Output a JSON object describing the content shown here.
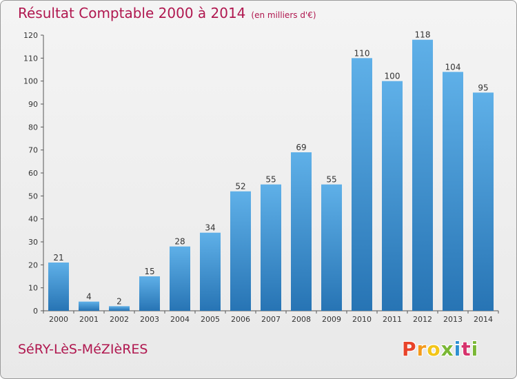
{
  "header": {
    "title": "Résultat Comptable 2000 à 2014",
    "subtitle": "(en milliers d'€)"
  },
  "footer": {
    "place": "SéRY-LèS-MéZIèRES",
    "logo": "Proxiti"
  },
  "colors": {
    "title": "#b0174f",
    "bar_top": "#5fb0e8",
    "bar_bottom": "#2774b4",
    "logo_letters": [
      "#e8432a",
      "#f39a1d",
      "#f3c519",
      "#7ab735",
      "#2e8fd1",
      "#d6336c",
      "#7ab735"
    ]
  },
  "chart_data": {
    "type": "bar",
    "title": "Résultat Comptable 2000 à 2014",
    "subtitle": "(en milliers d'€)",
    "xlabel": "",
    "ylabel": "",
    "categories": [
      "2000",
      "2001",
      "2002",
      "2003",
      "2004",
      "2005",
      "2006",
      "2007",
      "2008",
      "2009",
      "2010",
      "2011",
      "2012",
      "2013",
      "2014"
    ],
    "values": [
      21,
      4,
      2,
      15,
      28,
      34,
      52,
      55,
      69,
      55,
      110,
      100,
      118,
      104,
      95
    ],
    "ylim": [
      0,
      120
    ],
    "yticks": [
      0,
      10,
      20,
      30,
      40,
      50,
      60,
      70,
      80,
      90,
      100,
      110,
      120
    ],
    "grid": false,
    "data_labels": true
  }
}
